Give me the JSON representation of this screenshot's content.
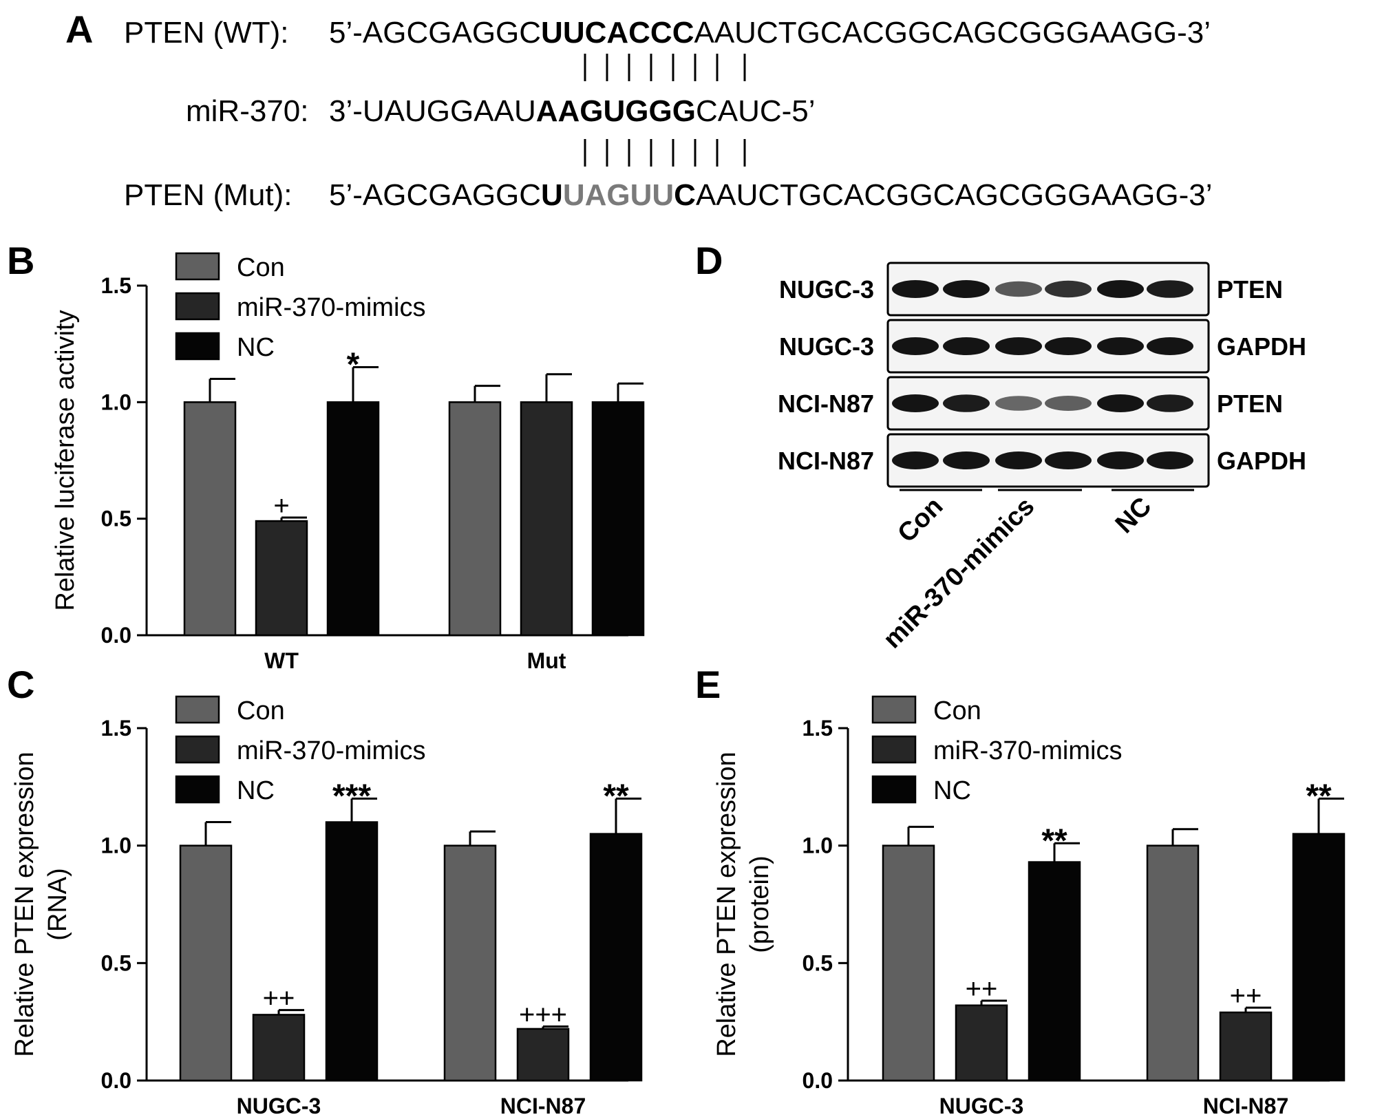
{
  "panelA": {
    "label": "A",
    "wt": {
      "name": "PTEN (WT):",
      "pre": "5’-AGCGAGGC",
      "seed": "UUCACCC",
      "post": "AAUCTGCACGGCAGCGGGAAGG-3’"
    },
    "mir": {
      "name": "miR-370:",
      "pre": "3’-UAUGGAAU",
      "seed": "AAGUGGG",
      "post": "CAUC-5’"
    },
    "mut": {
      "name": "PTEN (Mut):",
      "pre": "5’-AGCGAGGC",
      "seedStart": "U",
      "seedMid": "UAGUU",
      "seedEnd": "C",
      "post": "AAUCTGCACGGCAGCGGGAAGG-3’"
    }
  },
  "panelD": {
    "label": "D",
    "rows": [
      {
        "cell": "NUGC-3",
        "protein": "PTEN",
        "intensity": [
          1,
          1,
          0.55,
          0.8,
          1,
          0.95
        ]
      },
      {
        "cell": "NUGC-3",
        "protein": "GAPDH",
        "intensity": [
          1,
          1,
          1,
          1,
          1,
          1
        ]
      },
      {
        "cell": "NCI-N87",
        "protein": "PTEN",
        "intensity": [
          1,
          0.95,
          0.45,
          0.5,
          1,
          0.95
        ]
      },
      {
        "cell": "NCI-N87",
        "protein": "GAPDH",
        "intensity": [
          1,
          1,
          1,
          1,
          1,
          1
        ]
      }
    ],
    "groups": [
      "Con",
      "miR-370-mimics",
      "NC"
    ]
  },
  "chart_data": [
    {
      "panel": "B",
      "type": "bar",
      "title": "",
      "xlabel": "",
      "ylabel": "Relative luciferase activity",
      "ylim": [
        0,
        1.5
      ],
      "yticks": [
        "0.0",
        "0.5",
        "1.0",
        "1.5"
      ],
      "categories": [
        "WT",
        "Mut"
      ],
      "legend": "top-left",
      "series": [
        {
          "name": "Con",
          "color": "#606060",
          "values": [
            1.0,
            1.0
          ],
          "errors": [
            0.1,
            0.07
          ],
          "marks": [
            "",
            ""
          ]
        },
        {
          "name": "miR-370-mimics",
          "color": "#262626",
          "values": [
            0.49,
            1.0
          ],
          "errors": [
            0.015,
            0.12
          ],
          "marks": [
            "+",
            ""
          ]
        },
        {
          "name": "NC",
          "color": "#050505",
          "values": [
            1.0,
            1.0
          ],
          "errors": [
            0.15,
            0.08
          ],
          "marks": [
            "*",
            ""
          ]
        }
      ]
    },
    {
      "panel": "C",
      "type": "bar",
      "title": "",
      "xlabel": "",
      "ylabel": [
        "Relative PTEN expression",
        "(RNA)"
      ],
      "ylim": [
        0,
        1.5
      ],
      "yticks": [
        "0.0",
        "0.5",
        "1.0",
        "1.5"
      ],
      "categories": [
        "NUGC-3",
        "NCI-N87"
      ],
      "legend": "top-left",
      "series": [
        {
          "name": "Con",
          "color": "#606060",
          "values": [
            1.0,
            1.0
          ],
          "errors": [
            0.1,
            0.06
          ],
          "marks": [
            "",
            ""
          ]
        },
        {
          "name": "miR-370-mimics",
          "color": "#262626",
          "values": [
            0.28,
            0.22
          ],
          "errors": [
            0.02,
            0.01
          ],
          "marks": [
            "++",
            "+++"
          ]
        },
        {
          "name": "NC",
          "color": "#050505",
          "values": [
            1.1,
            1.05
          ],
          "errors": [
            0.1,
            0.15
          ],
          "marks": [
            "***",
            "**"
          ]
        }
      ]
    },
    {
      "panel": "E",
      "type": "bar",
      "title": "",
      "xlabel": "",
      "ylabel": [
        "Relative PTEN expression",
        "(protein)"
      ],
      "ylim": [
        0,
        1.5
      ],
      "yticks": [
        "0.0",
        "0.5",
        "1.0",
        "1.5"
      ],
      "categories": [
        "NUGC-3",
        "NCI-N87"
      ],
      "legend": "top-left",
      "series": [
        {
          "name": "Con",
          "color": "#606060",
          "values": [
            1.0,
            1.0
          ],
          "errors": [
            0.08,
            0.07
          ],
          "marks": [
            "",
            ""
          ]
        },
        {
          "name": "miR-370-mimics",
          "color": "#262626",
          "values": [
            0.32,
            0.29
          ],
          "errors": [
            0.02,
            0.02
          ],
          "marks": [
            "++",
            "++"
          ]
        },
        {
          "name": "NC",
          "color": "#050505",
          "values": [
            0.93,
            1.05
          ],
          "errors": [
            0.08,
            0.15
          ],
          "marks": [
            "**",
            "**"
          ]
        }
      ]
    }
  ]
}
